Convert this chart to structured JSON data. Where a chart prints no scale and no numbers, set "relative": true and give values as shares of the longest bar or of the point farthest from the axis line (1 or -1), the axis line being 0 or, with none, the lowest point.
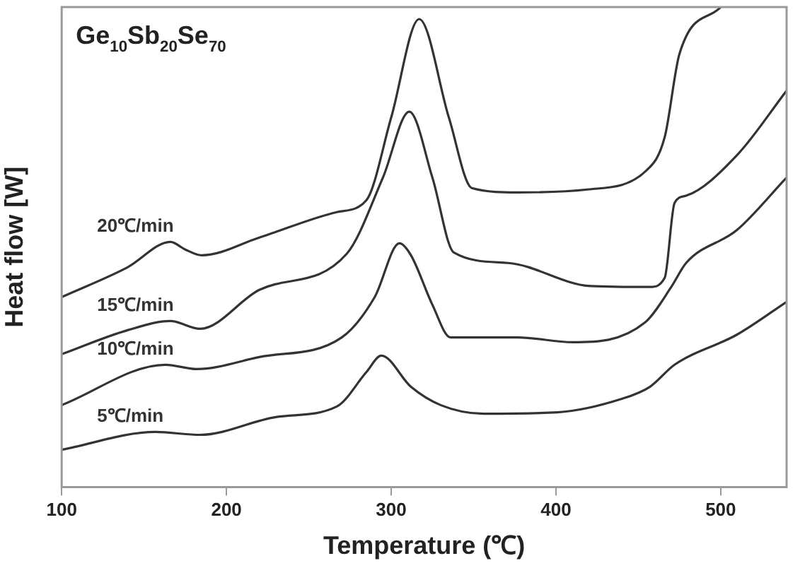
{
  "chart_data": {
    "type": "line",
    "title": "Ge$_{10}$Sb$_{20}$Se$_{70}$",
    "xlabel": "Temperature (℃)",
    "ylabel": "Heat flow [W]",
    "relative": true,
    "xlim": [
      100,
      540
    ],
    "xticks": [
      100,
      200,
      300,
      400,
      500
    ],
    "grid": false,
    "legend": false,
    "marker": "none",
    "line_style": "solid",
    "series": [
      {
        "name": "20℃/min",
        "color": "#333333",
        "x": [
          100,
          140,
          166,
          175,
          185,
          220,
          267,
          285,
          300,
          317,
          335,
          349,
          377,
          419,
          455,
          466,
          475,
          500
        ],
        "values": [
          0.396,
          0.458,
          0.511,
          0.495,
          0.483,
          0.52,
          0.573,
          0.598,
          0.77,
          0.975,
          0.77,
          0.623,
          0.614,
          0.62,
          0.66,
          0.729,
          0.903,
          1
        ]
      },
      {
        "name": "15℃/min",
        "color": "#333333",
        "x": [
          100,
          140,
          166,
          184,
          220,
          273,
          295,
          311,
          325,
          338,
          371,
          421,
          457,
          466,
          472,
          479,
          510,
          540
        ],
        "values": [
          0.277,
          0.327,
          0.346,
          0.33,
          0.411,
          0.486,
          0.645,
          0.782,
          0.645,
          0.489,
          0.467,
          0.419,
          0.417,
          0.436,
          0.592,
          0.607,
          0.692,
          0.826
        ]
      },
      {
        "name": "10℃/min",
        "color": "#333333",
        "x": [
          100,
          163,
          182,
          220,
          270,
          290,
          305,
          312,
          325,
          336,
          377,
          410,
          454,
          470,
          479,
          510,
          540
        ],
        "values": [
          0.171,
          0.255,
          0.246,
          0.271,
          0.312,
          0.396,
          0.508,
          0.483,
          0.38,
          0.312,
          0.312,
          0.302,
          0.343,
          0.417,
          0.467,
          0.536,
          0.645
        ]
      },
      {
        "name": "5℃/min",
        "color": "#333333",
        "x": [
          100,
          157,
          184,
          230,
          267,
          285,
          294,
          312,
          330,
          356,
          401,
          440,
          457,
          472,
          510,
          540
        ],
        "values": [
          0.078,
          0.115,
          0.109,
          0.146,
          0.168,
          0.24,
          0.274,
          0.209,
          0.171,
          0.153,
          0.156,
          0.184,
          0.209,
          0.255,
          0.318,
          0.386
        ]
      }
    ]
  }
}
